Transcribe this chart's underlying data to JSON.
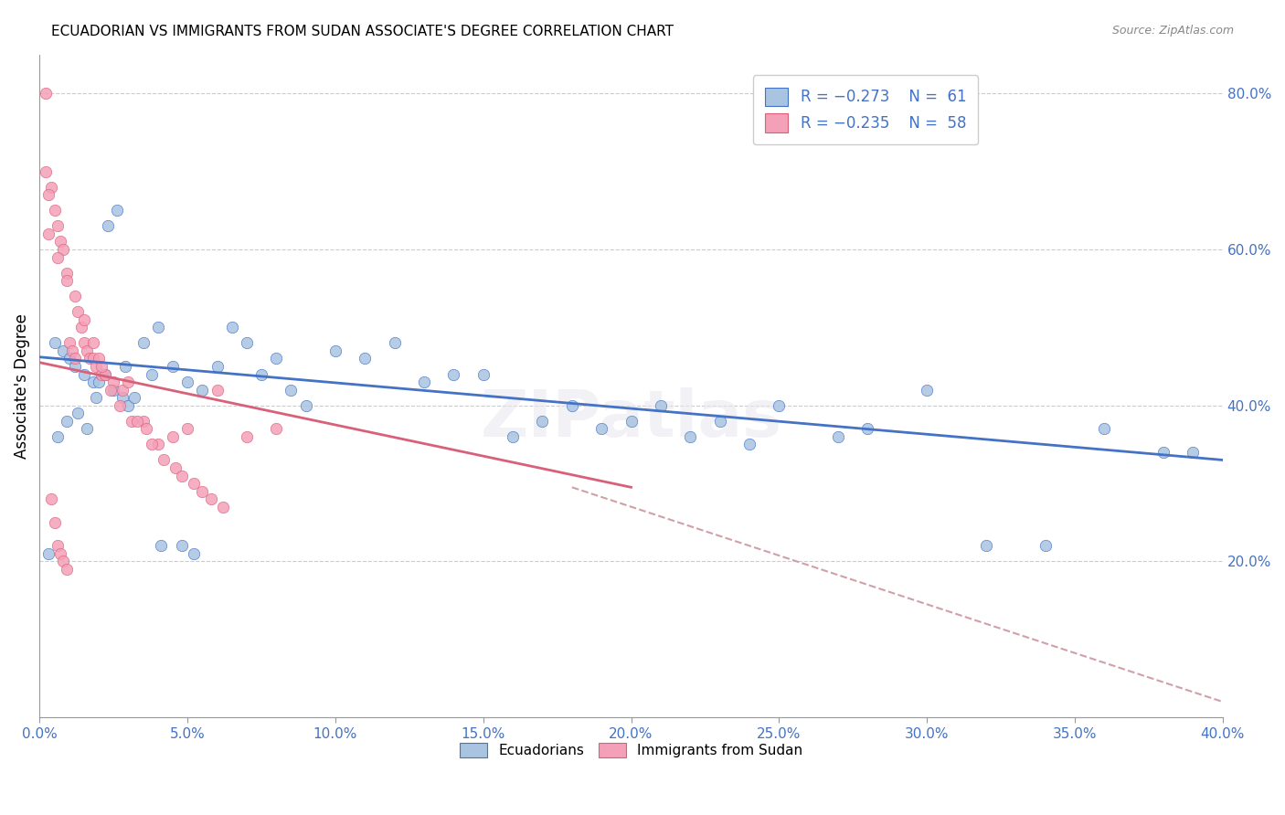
{
  "title": "ECUADORIAN VS IMMIGRANTS FROM SUDAN ASSOCIATE'S DEGREE CORRELATION CHART",
  "source": "Source: ZipAtlas.com",
  "ylabel": "Associate's Degree",
  "watermark": "ZIPatlas",
  "legend1_label": "Ecuadorians",
  "legend2_label": "Immigrants from Sudan",
  "blue_color": "#a8c4e0",
  "pink_color": "#f4a0b8",
  "blue_line_color": "#4472c4",
  "pink_line_color": "#d9607a",
  "dashed_line_color": "#d0a0a8",
  "x_min": 0.0,
  "x_max": 0.4,
  "y_min": 0.0,
  "y_max": 0.85,
  "blue_scatter_x": [
    0.005,
    0.008,
    0.01,
    0.012,
    0.015,
    0.018,
    0.02,
    0.022,
    0.025,
    0.028,
    0.03,
    0.035,
    0.038,
    0.04,
    0.045,
    0.05,
    0.055,
    0.06,
    0.065,
    0.07,
    0.075,
    0.08,
    0.085,
    0.09,
    0.1,
    0.11,
    0.12,
    0.13,
    0.14,
    0.15,
    0.16,
    0.17,
    0.18,
    0.19,
    0.2,
    0.21,
    0.22,
    0.23,
    0.24,
    0.25,
    0.27,
    0.28,
    0.3,
    0.32,
    0.34,
    0.36,
    0.38,
    0.39,
    0.003,
    0.006,
    0.009,
    0.013,
    0.016,
    0.019,
    0.023,
    0.026,
    0.029,
    0.032,
    0.041,
    0.048,
    0.052
  ],
  "blue_scatter_y": [
    0.48,
    0.47,
    0.46,
    0.45,
    0.44,
    0.43,
    0.43,
    0.44,
    0.42,
    0.41,
    0.4,
    0.48,
    0.44,
    0.5,
    0.45,
    0.43,
    0.42,
    0.45,
    0.5,
    0.48,
    0.44,
    0.46,
    0.42,
    0.4,
    0.47,
    0.46,
    0.48,
    0.43,
    0.44,
    0.44,
    0.36,
    0.38,
    0.4,
    0.37,
    0.38,
    0.4,
    0.36,
    0.38,
    0.35,
    0.4,
    0.36,
    0.37,
    0.42,
    0.22,
    0.22,
    0.37,
    0.34,
    0.34,
    0.21,
    0.36,
    0.38,
    0.39,
    0.37,
    0.41,
    0.63,
    0.65,
    0.45,
    0.41,
    0.22,
    0.22,
    0.21
  ],
  "pink_scatter_x": [
    0.002,
    0.004,
    0.005,
    0.006,
    0.007,
    0.008,
    0.009,
    0.01,
    0.011,
    0.012,
    0.013,
    0.014,
    0.015,
    0.016,
    0.017,
    0.018,
    0.019,
    0.02,
    0.021,
    0.022,
    0.025,
    0.028,
    0.03,
    0.035,
    0.04,
    0.045,
    0.05,
    0.06,
    0.07,
    0.08,
    0.003,
    0.006,
    0.009,
    0.012,
    0.015,
    0.018,
    0.021,
    0.024,
    0.027,
    0.031,
    0.033,
    0.036,
    0.038,
    0.042,
    0.046,
    0.048,
    0.052,
    0.055,
    0.058,
    0.062,
    0.002,
    0.003,
    0.004,
    0.005,
    0.006,
    0.007,
    0.008,
    0.009
  ],
  "pink_scatter_y": [
    0.8,
    0.68,
    0.65,
    0.63,
    0.61,
    0.6,
    0.57,
    0.48,
    0.47,
    0.46,
    0.52,
    0.5,
    0.48,
    0.47,
    0.46,
    0.46,
    0.45,
    0.46,
    0.44,
    0.44,
    0.43,
    0.42,
    0.43,
    0.38,
    0.35,
    0.36,
    0.37,
    0.42,
    0.36,
    0.37,
    0.62,
    0.59,
    0.56,
    0.54,
    0.51,
    0.48,
    0.45,
    0.42,
    0.4,
    0.38,
    0.38,
    0.37,
    0.35,
    0.33,
    0.32,
    0.31,
    0.3,
    0.29,
    0.28,
    0.27,
    0.7,
    0.67,
    0.28,
    0.25,
    0.22,
    0.21,
    0.2,
    0.19
  ],
  "blue_line_x": [
    0.0,
    0.4
  ],
  "blue_line_y": [
    0.462,
    0.33
  ],
  "pink_line_x": [
    0.0,
    0.2
  ],
  "pink_line_y": [
    0.455,
    0.295
  ],
  "dashed_line_x": [
    0.18,
    0.4
  ],
  "dashed_line_y": [
    0.295,
    0.02
  ]
}
